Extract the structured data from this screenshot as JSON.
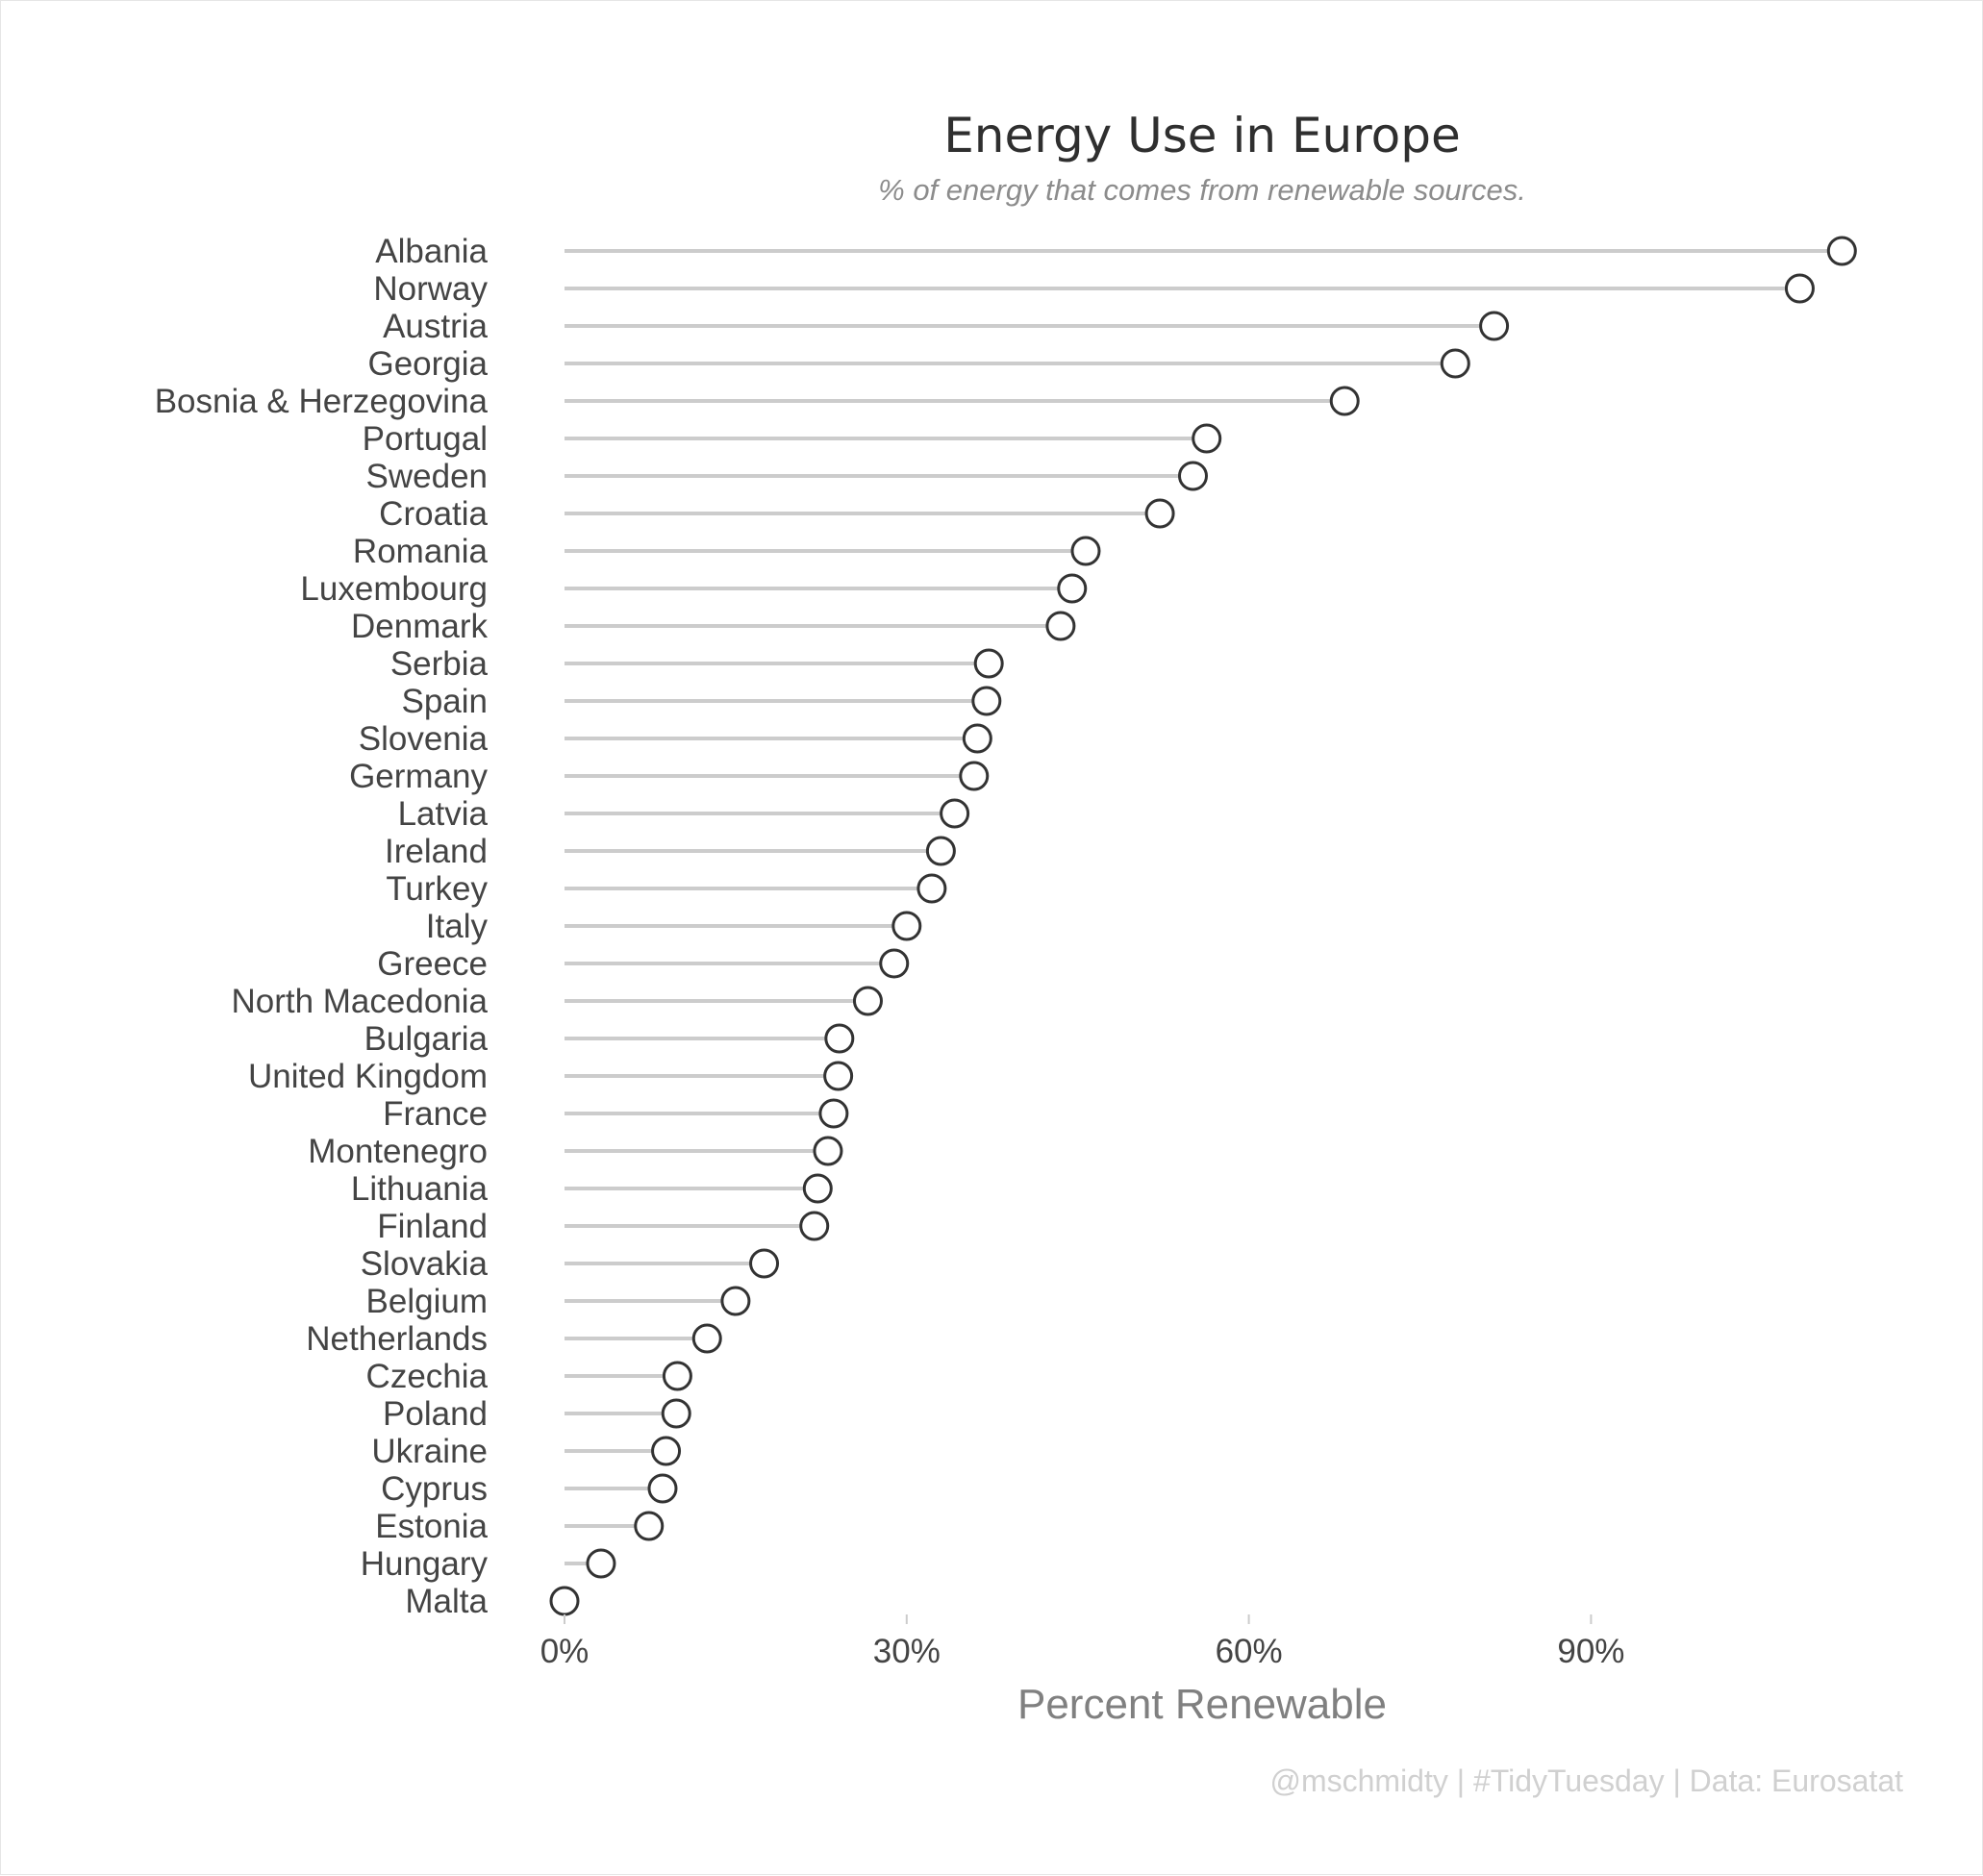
{
  "chart_data": {
    "type": "lollipop",
    "title": "Energy Use in Europe",
    "subtitle": "% of energy that comes from renewable sources.",
    "xlabel": "Percent Renewable",
    "caption": "@mschmidty | #TidyTuesday | Data: Eurosatat",
    "xlim": [
      0,
      112
    ],
    "x_ticks": [
      0,
      30,
      60,
      90
    ],
    "x_tick_labels": [
      "0%",
      "30%",
      "60%",
      "90%"
    ],
    "grid": false,
    "categories": [
      "Albania",
      "Norway",
      "Austria",
      "Georgia",
      "Bosnia & Herzegovina",
      "Portugal",
      "Sweden",
      "Croatia",
      "Romania",
      "Luxembourg",
      "Denmark",
      "Serbia",
      "Spain",
      "Slovenia",
      "Germany",
      "Latvia",
      "Ireland",
      "Turkey",
      "Italy",
      "Greece",
      "North Macedonia",
      "Bulgaria",
      "United Kingdom",
      "France",
      "Montenegro",
      "Lithuania",
      "Finland",
      "Slovakia",
      "Belgium",
      "Netherlands",
      "Czechia",
      "Poland",
      "Ukraine",
      "Cyprus",
      "Estonia",
      "Hungary",
      "Malta"
    ],
    "values": [
      112,
      108.3,
      81.5,
      78.1,
      68.4,
      56.3,
      55.1,
      52.2,
      45.7,
      44.5,
      43.5,
      37.2,
      37.0,
      36.2,
      35.9,
      34.2,
      33.0,
      32.2,
      30.0,
      28.9,
      26.6,
      24.1,
      24.0,
      23.6,
      23.1,
      22.2,
      21.9,
      17.5,
      15.0,
      12.5,
      9.9,
      9.8,
      8.9,
      8.6,
      7.4,
      3.2,
      0.0
    ]
  }
}
